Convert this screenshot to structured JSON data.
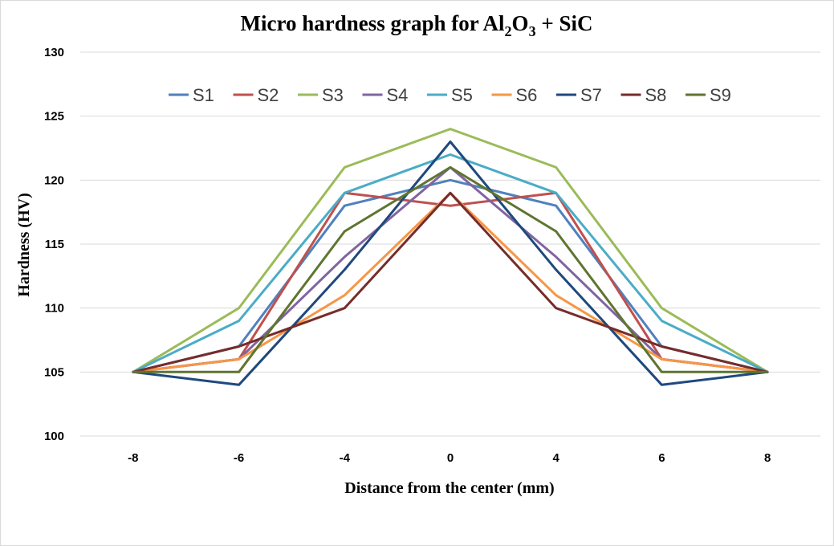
{
  "chart_data": {
    "type": "line",
    "title": {
      "prefix": "Micro hardness graph for Al",
      "sub1": "2",
      "mid": "O",
      "sub2": "3",
      "suffix": " + SiC"
    },
    "xlabel": "Distance from the center (mm)",
    "ylabel": "Hardness (HV)",
    "categories": [
      "-8",
      "-6",
      "-4",
      "0",
      "4",
      "6",
      "8"
    ],
    "ylim": [
      100,
      130
    ],
    "yticks": [
      "100",
      "105",
      "110",
      "115",
      "120",
      "125",
      "130"
    ],
    "grid": true,
    "legend_position": "top",
    "series": [
      {
        "name": "S1",
        "color": "#4f81bd",
        "values": [
          105,
          107,
          118,
          120,
          118,
          107,
          105
        ]
      },
      {
        "name": "S2",
        "color": "#c0504d",
        "values": [
          105,
          106,
          119,
          118,
          119,
          106,
          105
        ]
      },
      {
        "name": "S3",
        "color": "#9bbb59",
        "values": [
          105,
          110,
          121,
          124,
          121,
          110,
          105
        ]
      },
      {
        "name": "S4",
        "color": "#8064a2",
        "values": [
          105,
          106,
          114,
          121,
          114,
          106,
          105
        ]
      },
      {
        "name": "S5",
        "color": "#4bacc6",
        "values": [
          105,
          109,
          119,
          122,
          119,
          109,
          105
        ]
      },
      {
        "name": "S6",
        "color": "#f79646",
        "values": [
          105,
          106,
          111,
          119,
          111,
          106,
          105
        ]
      },
      {
        "name": "S7",
        "color": "#1f497d",
        "values": [
          105,
          104,
          113,
          123,
          113,
          104,
          105
        ]
      },
      {
        "name": "S8",
        "color": "#772c2a",
        "values": [
          105,
          107,
          110,
          119,
          110,
          107,
          105
        ]
      },
      {
        "name": "S9",
        "color": "#5f7530",
        "values": [
          105,
          105,
          116,
          121,
          116,
          105,
          105
        ]
      }
    ]
  }
}
